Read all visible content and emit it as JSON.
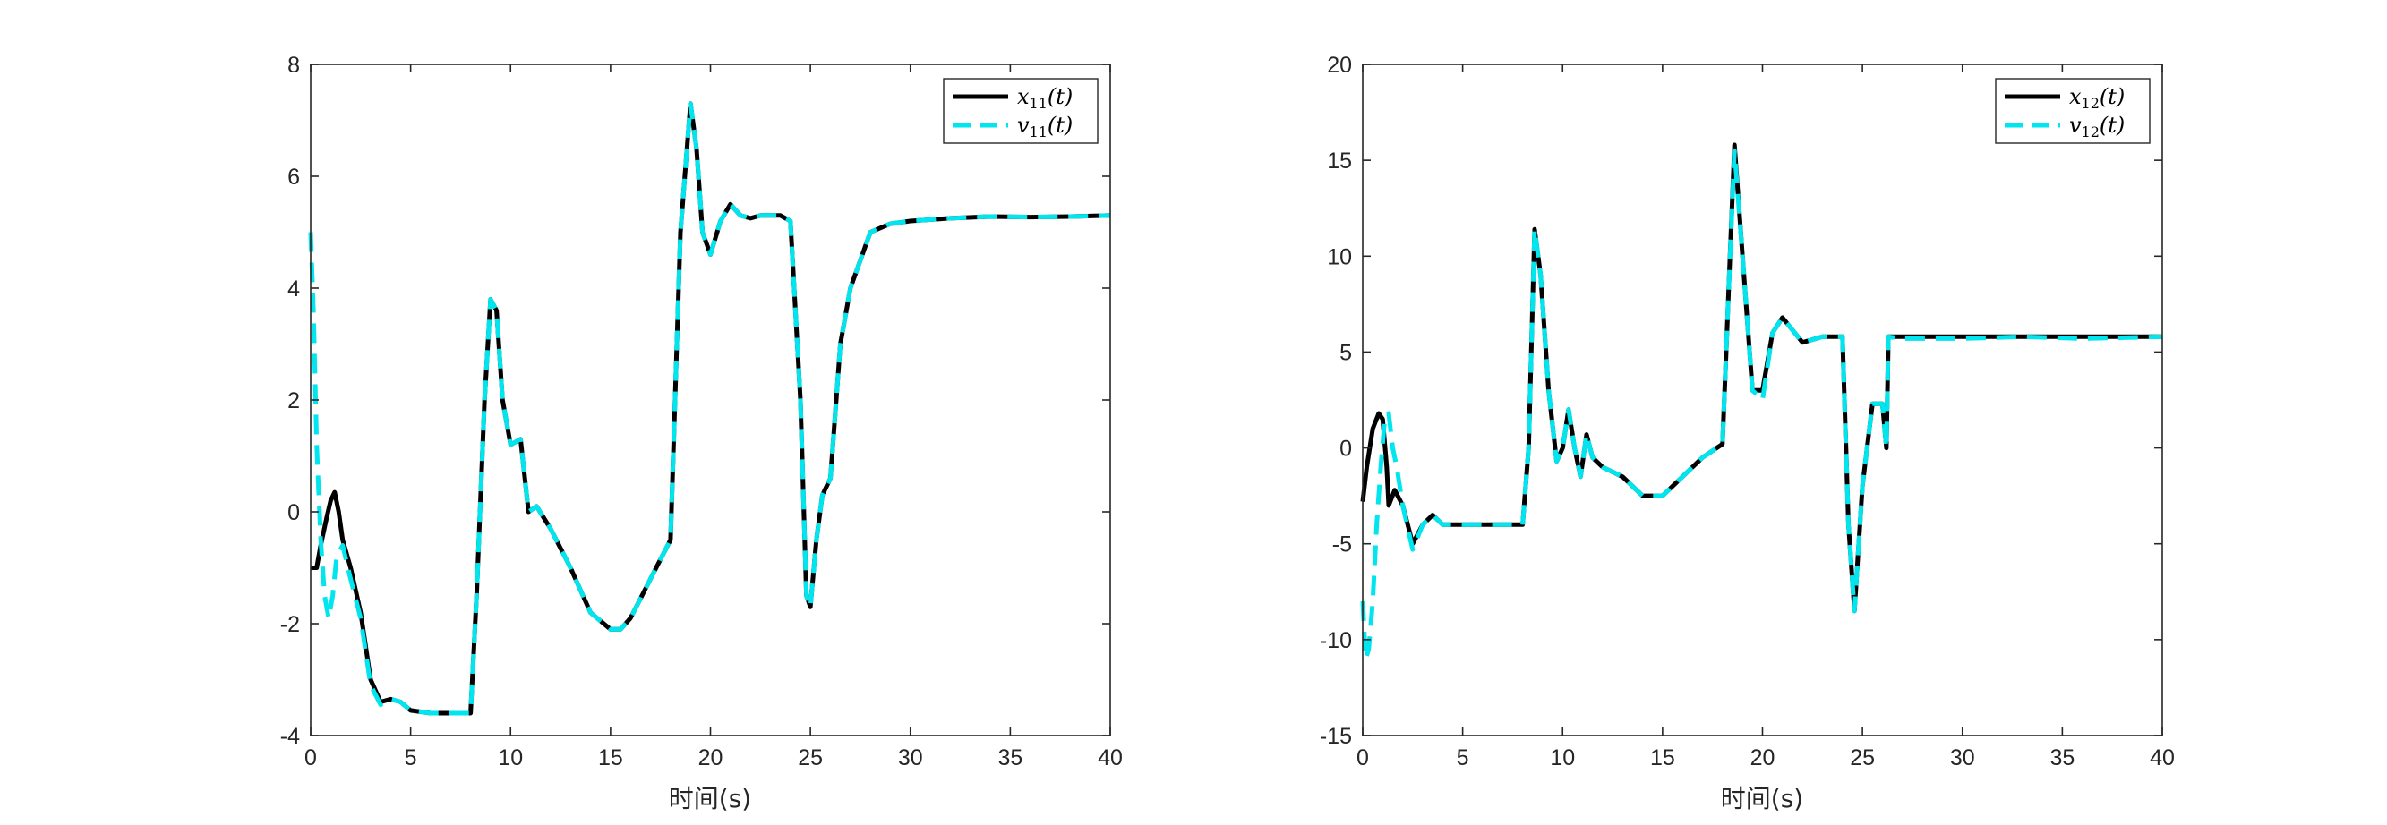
{
  "chart_data": [
    {
      "type": "line",
      "xlabel": "时间(s)",
      "ylabel": "",
      "xlim": [
        0,
        40
      ],
      "ylim": [
        -4,
        8
      ],
      "xticks": [
        0,
        5,
        10,
        15,
        20,
        25,
        30,
        35,
        40
      ],
      "yticks": [
        -4,
        -2,
        0,
        2,
        4,
        6,
        8
      ],
      "grid": false,
      "legend_position": "top-right",
      "series": [
        {
          "name": "x11(t)",
          "label_main": "x",
          "label_sub": "11",
          "label_arg": "(t)",
          "color": "#000000",
          "style": "solid",
          "x": [
            0,
            0.3,
            0.5,
            0.8,
            1.0,
            1.2,
            1.4,
            1.6,
            2.0,
            2.5,
            3.0,
            3.5,
            4.0,
            4.5,
            5.0,
            6.0,
            7.0,
            8.0,
            8.3,
            8.7,
            9.0,
            9.3,
            9.6,
            10.0,
            10.5,
            10.9,
            11.3,
            12.0,
            13.0,
            14.0,
            15.0,
            15.5,
            16.0,
            17.0,
            18.0,
            18.5,
            19.0,
            19.3,
            19.6,
            20.0,
            20.5,
            21.0,
            21.5,
            22.0,
            22.5,
            23.0,
            23.5,
            24.0,
            24.5,
            24.8,
            25.0,
            25.3,
            25.6,
            26.0,
            26.5,
            27.0,
            28.0,
            29.0,
            30.0,
            32.0,
            34.0,
            36.0,
            38.0,
            40.0
          ],
          "y": [
            -1.0,
            -1.0,
            -0.6,
            -0.1,
            0.2,
            0.35,
            0.0,
            -0.5,
            -1.0,
            -1.8,
            -3.0,
            -3.4,
            -3.35,
            -3.4,
            -3.55,
            -3.6,
            -3.6,
            -3.6,
            -1.5,
            2.0,
            3.8,
            3.6,
            2.0,
            1.2,
            1.3,
            0.0,
            0.1,
            -0.3,
            -1.0,
            -1.8,
            -2.1,
            -2.1,
            -1.9,
            -1.2,
            -0.5,
            5.0,
            7.3,
            6.5,
            5.0,
            4.6,
            5.2,
            5.5,
            5.3,
            5.25,
            5.3,
            5.3,
            5.3,
            5.2,
            2.0,
            -1.5,
            -1.7,
            -0.5,
            0.3,
            0.6,
            3.0,
            4.0,
            5.0,
            5.15,
            5.2,
            5.25,
            5.28,
            5.27,
            5.28,
            5.3
          ]
        },
        {
          "name": "v11(t)",
          "label_main": "v",
          "label_sub": "11",
          "label_arg": "(t)",
          "color": "#00e5ee",
          "style": "dashed",
          "x": [
            0,
            0.15,
            0.3,
            0.5,
            0.7,
            0.9,
            1.1,
            1.3,
            1.6,
            2.0,
            2.5,
            3.0,
            3.5,
            4.0,
            4.5,
            5.0,
            6.0,
            7.0,
            8.0,
            8.3,
            8.7,
            9.0,
            9.3,
            9.6,
            10.0,
            10.5,
            10.9,
            11.3,
            12.0,
            13.0,
            14.0,
            15.0,
            15.5,
            16.0,
            17.0,
            18.0,
            18.5,
            19.0,
            19.3,
            19.6,
            20.0,
            20.5,
            21.0,
            21.5,
            22.0,
            22.5,
            23.0,
            23.5,
            24.0,
            24.5,
            24.8,
            25.0,
            25.3,
            25.6,
            26.0,
            26.5,
            27.0,
            28.0,
            29.0,
            30.0,
            32.0,
            34.0,
            36.0,
            38.0,
            40.0
          ],
          "y": [
            5.0,
            3.5,
            1.2,
            -0.5,
            -1.5,
            -1.9,
            -1.5,
            -0.8,
            -0.6,
            -1.2,
            -1.9,
            -3.1,
            -3.45,
            -3.35,
            -3.4,
            -3.55,
            -3.6,
            -3.6,
            -3.6,
            -1.5,
            2.0,
            3.8,
            3.6,
            2.0,
            1.2,
            1.3,
            0.0,
            0.1,
            -0.3,
            -1.0,
            -1.8,
            -2.1,
            -2.1,
            -1.9,
            -1.2,
            -0.5,
            5.0,
            7.3,
            6.5,
            5.0,
            4.6,
            5.2,
            5.5,
            5.3,
            5.25,
            5.3,
            5.3,
            5.3,
            5.2,
            2.0,
            -1.5,
            -1.7,
            -0.5,
            0.3,
            0.6,
            3.0,
            4.0,
            5.0,
            5.15,
            5.2,
            5.25,
            5.28,
            5.27,
            5.28,
            5.3
          ]
        }
      ]
    },
    {
      "type": "line",
      "xlabel": "时间(s)",
      "ylabel": "",
      "xlim": [
        0,
        40
      ],
      "ylim": [
        -15,
        20
      ],
      "xticks": [
        0,
        5,
        10,
        15,
        20,
        25,
        30,
        35,
        40
      ],
      "yticks": [
        -15,
        -10,
        -5,
        0,
        5,
        10,
        15,
        20
      ],
      "grid": false,
      "legend_position": "top-right",
      "series": [
        {
          "name": "x12(t)",
          "label_main": "x",
          "label_sub": "12",
          "label_arg": "(t)",
          "color": "#000000",
          "style": "solid",
          "x": [
            0,
            0.2,
            0.5,
            0.8,
            1.0,
            1.2,
            1.3,
            1.6,
            2.0,
            2.5,
            3.0,
            3.5,
            4.0,
            5.0,
            6.0,
            7.0,
            8.0,
            8.3,
            8.6,
            8.9,
            9.3,
            9.7,
            10.0,
            10.3,
            10.6,
            10.9,
            11.2,
            11.5,
            12.0,
            13.0,
            14.0,
            15.0,
            16.0,
            17.0,
            18.0,
            18.3,
            18.6,
            19.0,
            19.5,
            20.0,
            20.5,
            21.0,
            22.0,
            23.0,
            24.0,
            24.3,
            24.6,
            25.0,
            25.5,
            26.0,
            26.2,
            26.3,
            27.0,
            30.0,
            33.0,
            36.0,
            40.0
          ],
          "y": [
            -2.8,
            -1.0,
            1.0,
            1.8,
            1.5,
            -1.0,
            -3.0,
            -2.2,
            -3.0,
            -5.0,
            -4.0,
            -3.5,
            -4.0,
            -4.0,
            -4.0,
            -4.0,
            -4.0,
            0.0,
            11.4,
            9.0,
            3.0,
            -0.7,
            0.0,
            2.0,
            0.0,
            -1.5,
            0.7,
            -0.5,
            -1.0,
            -1.5,
            -2.5,
            -2.5,
            -1.5,
            -0.5,
            0.2,
            8.0,
            15.8,
            10.0,
            3.0,
            3.0,
            6.0,
            6.8,
            5.5,
            5.8,
            5.8,
            -4.0,
            -8.5,
            -2.0,
            2.3,
            2.3,
            0.0,
            5.8,
            5.8,
            5.8,
            5.8,
            5.8,
            5.8
          ]
        },
        {
          "name": "v12(t)",
          "label_main": "v",
          "label_sub": "12",
          "label_arg": "(t)",
          "color": "#00e5ee",
          "style": "dashed",
          "x": [
            0,
            0.15,
            0.3,
            0.5,
            0.7,
            0.9,
            1.1,
            1.3,
            1.5,
            1.7,
            2.0,
            2.5,
            3.0,
            3.5,
            4.0,
            5.0,
            6.0,
            7.0,
            8.0,
            8.3,
            8.6,
            8.9,
            9.3,
            9.7,
            10.0,
            10.3,
            10.6,
            10.9,
            11.2,
            11.5,
            12.0,
            13.0,
            14.0,
            15.0,
            16.0,
            17.0,
            18.0,
            18.3,
            18.6,
            19.0,
            19.5,
            20.0,
            20.5,
            21.0,
            22.0,
            23.0,
            24.0,
            24.3,
            24.6,
            25.0,
            25.5,
            26.0,
            26.2,
            26.3,
            27.0,
            30.0,
            33.0,
            36.0,
            40.0
          ],
          "y": [
            -8.0,
            -11.0,
            -10.5,
            -8.0,
            -4.0,
            -1.0,
            1.5,
            1.8,
            0.0,
            -1.0,
            -3.0,
            -5.3,
            -4.0,
            -3.5,
            -4.0,
            -4.0,
            -4.0,
            -4.0,
            -4.0,
            0.0,
            11.4,
            9.0,
            3.0,
            -0.7,
            0.0,
            2.0,
            0.0,
            -1.5,
            0.7,
            -0.5,
            -1.0,
            -1.5,
            -2.5,
            -2.5,
            -1.5,
            -0.5,
            0.2,
            8.0,
            15.5,
            10.0,
            3.0,
            2.5,
            6.0,
            6.8,
            5.5,
            5.8,
            5.8,
            -4.0,
            -8.5,
            -2.0,
            2.3,
            2.3,
            0.0,
            5.8,
            5.7,
            5.7,
            5.8,
            5.7,
            5.8
          ]
        }
      ]
    }
  ]
}
